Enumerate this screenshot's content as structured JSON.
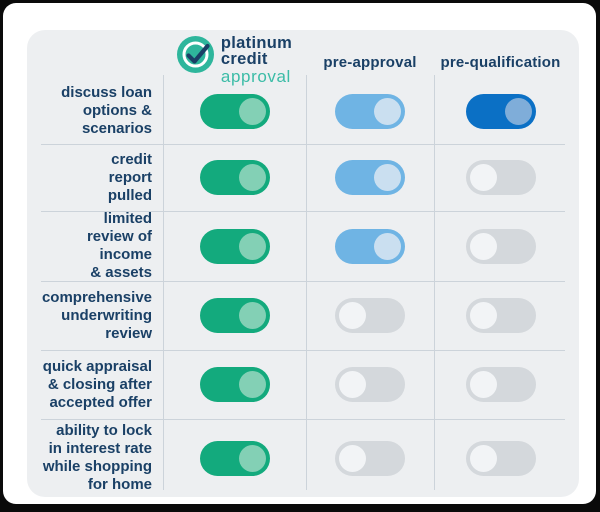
{
  "chart_data": {
    "type": "table",
    "title": "platinum credit approval vs pre-approval vs pre-qualification",
    "columns": [
      "platinum credit approval",
      "pre-approval",
      "pre-qualification"
    ],
    "rows": [
      {
        "feature": "discuss loan options & scenarios",
        "values": [
          "on",
          "on",
          "on"
        ]
      },
      {
        "feature": "credit report pulled",
        "values": [
          "on",
          "on",
          "off"
        ]
      },
      {
        "feature": "limited review of income & assets",
        "values": [
          "on",
          "on",
          "off"
        ]
      },
      {
        "feature": "comprehensive underwriting review",
        "values": [
          "on",
          "off",
          "off"
        ]
      },
      {
        "feature": "quick appraisal & closing after accepted offer",
        "values": [
          "on",
          "off",
          "off"
        ]
      },
      {
        "feature": "ability to lock in interest rate while shopping for home",
        "values": [
          "on",
          "off",
          "off"
        ]
      }
    ]
  },
  "header": {
    "logo": {
      "icon": "check-circle-icon",
      "title_lines": [
        "platinum",
        "credit"
      ],
      "subtitle": "approval"
    },
    "column_labels": [
      "pre-approval",
      "pre-qualification"
    ]
  },
  "rows": [
    {
      "label": [
        "discuss loan",
        "options &",
        "scenarios"
      ],
      "toggles": [
        {
          "column": "platinum credit approval",
          "state": "on",
          "variant": "green"
        },
        {
          "column": "pre-approval",
          "state": "on",
          "variant": "blue"
        },
        {
          "column": "pre-qualification",
          "state": "on",
          "variant": "darkblue"
        }
      ]
    },
    {
      "label": [
        "credit",
        "report",
        "pulled"
      ],
      "toggles": [
        {
          "column": "platinum credit approval",
          "state": "on",
          "variant": "green"
        },
        {
          "column": "pre-approval",
          "state": "on",
          "variant": "blue"
        },
        {
          "column": "pre-qualification",
          "state": "off",
          "variant": "off"
        }
      ]
    },
    {
      "label": [
        "limited",
        "review of",
        "income",
        "& assets"
      ],
      "toggles": [
        {
          "column": "platinum credit approval",
          "state": "on",
          "variant": "green"
        },
        {
          "column": "pre-approval",
          "state": "on",
          "variant": "blue"
        },
        {
          "column": "pre-qualification",
          "state": "off",
          "variant": "off"
        }
      ]
    },
    {
      "label": [
        "comprehensive",
        "underwriting",
        "review"
      ],
      "toggles": [
        {
          "column": "platinum credit approval",
          "state": "on",
          "variant": "green"
        },
        {
          "column": "pre-approval",
          "state": "off",
          "variant": "off"
        },
        {
          "column": "pre-qualification",
          "state": "off",
          "variant": "off"
        }
      ]
    },
    {
      "label": [
        "quick appraisal",
        "& closing after",
        "accepted offer"
      ],
      "toggles": [
        {
          "column": "platinum credit approval",
          "state": "on",
          "variant": "green"
        },
        {
          "column": "pre-approval",
          "state": "off",
          "variant": "off"
        },
        {
          "column": "pre-qualification",
          "state": "off",
          "variant": "off"
        }
      ]
    },
    {
      "label": [
        "ability to lock",
        "in interest rate",
        "while shopping",
        "for home"
      ],
      "toggles": [
        {
          "column": "platinum credit approval",
          "state": "on",
          "variant": "green"
        },
        {
          "column": "pre-approval",
          "state": "off",
          "variant": "off"
        },
        {
          "column": "pre-qualification",
          "state": "off",
          "variant": "off"
        }
      ]
    }
  ],
  "colors": {
    "frame": "#0a0a0a",
    "page_bg": "#ffffff",
    "card_bg": "#edeff1",
    "navy": "#1a4066",
    "teal": "#2eb69c",
    "teal_text": "#3bbca7",
    "divider": "#ccd3da",
    "green_track": "#13aa7d",
    "green_knob": "#83d0b5",
    "blue_track": "#6fb4e4",
    "blue_knob": "#cadff0",
    "darkblue_track": "#0b70c5",
    "darkblue_knob": "#7fadd9",
    "off_track": "#d4d8dc",
    "off_knob": "#f2f4f6"
  }
}
